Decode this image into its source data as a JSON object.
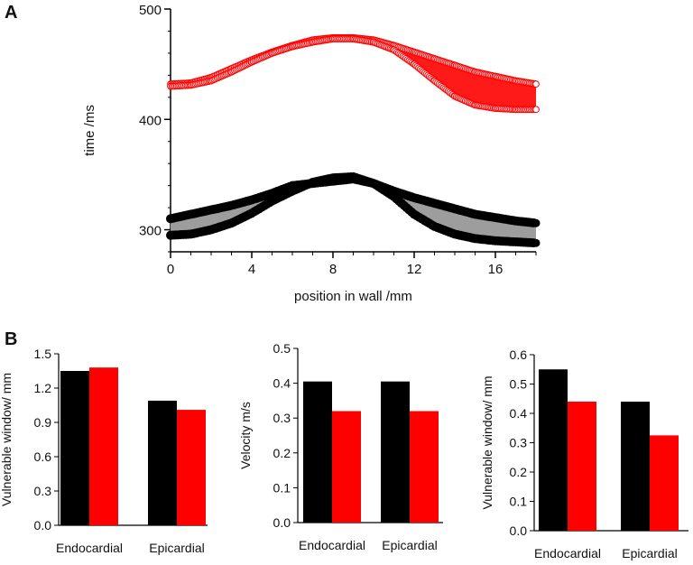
{
  "panel_labels": {
    "a": "A",
    "b": "B"
  },
  "colors": {
    "black": "#000000",
    "red": "#ff0000",
    "grey": "#9d9d9d",
    "red_fill": "#ff1a1a"
  },
  "chart_data": [
    {
      "type": "area",
      "panel": "A",
      "title": "",
      "xlabel": "position in wall /mm",
      "ylabel": "time /ms",
      "xlim": [
        0,
        18
      ],
      "ylim": [
        280,
        500
      ],
      "xticks": [
        0,
        4,
        8,
        12,
        16
      ],
      "yticks": [
        300,
        400,
        500
      ],
      "xtick_labels": [
        "0",
        "4",
        "8",
        "12",
        "16"
      ],
      "ytick_labels": [
        "300",
        "400",
        "500"
      ],
      "x": [
        0,
        1,
        2,
        3,
        4,
        5,
        6,
        7,
        8,
        9,
        10,
        11,
        12,
        13,
        14,
        15,
        16,
        17,
        18
      ],
      "series": [
        {
          "name": "red upper",
          "marker": "open-circle",
          "color": "red",
          "values": [
            432,
            433,
            438,
            446,
            454,
            461,
            467,
            472,
            474,
            474,
            472,
            467,
            461,
            455,
            449,
            443,
            439,
            435,
            432
          ]
        },
        {
          "name": "red lower",
          "marker": "open-circle",
          "color": "red",
          "values": [
            430,
            431,
            435,
            443,
            452,
            460,
            466,
            470,
            473,
            473,
            470,
            463,
            450,
            435,
            421,
            413,
            410,
            409,
            409
          ]
        },
        {
          "name": "black upper",
          "marker": "filled-circle",
          "color": "black",
          "values": [
            310,
            314,
            318,
            322,
            327,
            333,
            340,
            342,
            344,
            346,
            342,
            335,
            329,
            324,
            319,
            314,
            311,
            308,
            306
          ]
        },
        {
          "name": "black lower",
          "marker": "filled-circle",
          "color": "black",
          "values": [
            295,
            296,
            300,
            306,
            315,
            326,
            335,
            343,
            347,
            348,
            342,
            330,
            314,
            303,
            296,
            292,
            290,
            289,
            288
          ]
        }
      ]
    },
    {
      "type": "bar",
      "panel": "B1",
      "title": "",
      "xlabel": "",
      "ylabel": "Vulnerable window/ mm",
      "categories": [
        "Endocardial",
        "Epicardial"
      ],
      "ylim": [
        0,
        1.5
      ],
      "yticks": [
        0.0,
        0.3,
        0.6,
        0.9,
        1.2,
        1.5
      ],
      "ytick_labels": [
        "0.0",
        "0.3",
        "0.6",
        "0.9",
        "1.2",
        "1.5"
      ],
      "series": [
        {
          "name": "black",
          "color": "black",
          "values": [
            1.35,
            1.09
          ]
        },
        {
          "name": "red",
          "color": "red",
          "values": [
            1.38,
            1.01
          ]
        }
      ]
    },
    {
      "type": "bar",
      "panel": "B2",
      "title": "",
      "xlabel": "",
      "ylabel": "Velocity m/s",
      "categories": [
        "Endocardial",
        "Epicardial"
      ],
      "ylim": [
        0,
        0.5
      ],
      "yticks": [
        0.0,
        0.1,
        0.2,
        0.3,
        0.4,
        0.5
      ],
      "ytick_labels": [
        "0.0",
        "0.1",
        "0.2",
        "0.3",
        "0.4",
        "0.5"
      ],
      "series": [
        {
          "name": "black",
          "color": "black",
          "values": [
            0.405,
            0.405
          ]
        },
        {
          "name": "red",
          "color": "red",
          "values": [
            0.32,
            0.32
          ]
        }
      ]
    },
    {
      "type": "bar",
      "panel": "B3",
      "title": "",
      "xlabel": "",
      "ylabel": "Vulnerable window/ mm",
      "categories": [
        "Endocardial",
        "Epicardial"
      ],
      "ylim": [
        0,
        0.6
      ],
      "yticks": [
        0.0,
        0.1,
        0.2,
        0.3,
        0.4,
        0.5,
        0.6
      ],
      "ytick_labels": [
        "0.0",
        "0.1",
        "0.2",
        "0.3",
        "0.4",
        "0.5",
        "0.6"
      ],
      "series": [
        {
          "name": "black",
          "color": "black",
          "values": [
            0.55,
            0.44
          ]
        },
        {
          "name": "red",
          "color": "red",
          "values": [
            0.44,
            0.325
          ]
        }
      ]
    }
  ]
}
